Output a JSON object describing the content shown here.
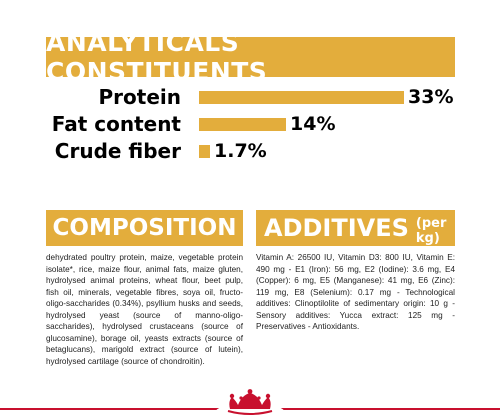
{
  "header": {
    "title": "ANALYTICALS CONSTITUENTS"
  },
  "analytics": [
    {
      "label": "Protein",
      "value": "33%",
      "fraction": 0.33
    },
    {
      "label": "Fat content",
      "value": "14%",
      "fraction": 0.14
    },
    {
      "label": "Crude fiber",
      "value": "1.7%",
      "fraction": 0.017
    }
  ],
  "composition": {
    "title": "COMPOSITION",
    "text": "dehydrated poultry protein, maize, vegetable protein isolate*, rice, maize flour, animal fats, maize gluten, hydrolysed animal proteins, wheat flour, beet pulp, fish oil, minerals, vegetable fibres, soya oil, fructo-oligo-saccharides (0.34%), psyllium husks and seeds, hydrolysed yeast (source of manno-oligo-saccharides), hydrolysed crustaceans (source of glucosamine), borage oil, yeasts extracts (source of betaglucans), marigold extract (source of lutein), hydrolysed cartilage (source of chondroitin)."
  },
  "additives": {
    "title": "ADDITIVES",
    "subtitle": "(per kg)",
    "text": "Vitamin A: 26500 IU, Vitamin D3: 800 IU, Vitamin E: 490 mg - E1 (Iron): 56 mg, E2 (Iodine): 3.6 mg, E4 (Copper): 6 mg, E5 (Manganese): 41 mg, E6 (Zinc): 119 mg, E8 (Selenium): 0.17 mg - Technological additives: Clinoptilolite of sedimentary origin: 10 g - Sensory additives: Yucca extract: 125 mg - Preservatives - Antioxidants."
  },
  "colors": {
    "accent": "#e3ad3c",
    "brand_red": "#c8102e"
  },
  "footer": {
    "logo": "royal-canin-crown-logo"
  }
}
